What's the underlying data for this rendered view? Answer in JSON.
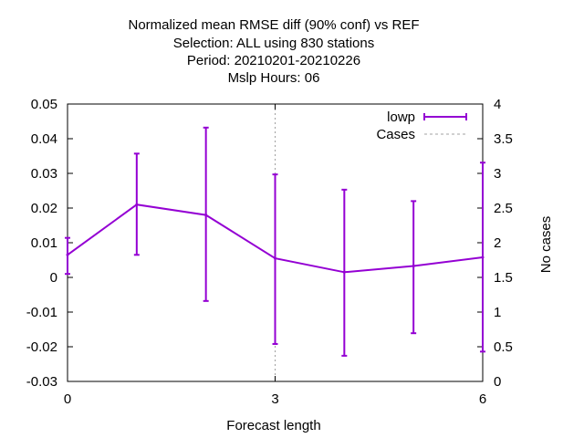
{
  "chart_data": {
    "type": "line",
    "title_lines": [
      "Normalized mean RMSE diff (90% conf) vs REF",
      "Selection: ALL using   830 stations",
      "Period: 20210201-20210226",
      "Mslp   Hours:  06"
    ],
    "xlabel": "Forecast length",
    "ylabel": "",
    "y2label": "No cases",
    "xlim": [
      0,
      6
    ],
    "ylim": [
      -0.03,
      0.05
    ],
    "y2lim": [
      0,
      4
    ],
    "x_ticks": [
      "0",
      "3",
      "6"
    ],
    "x_tick_values": [
      0,
      3,
      6
    ],
    "y_ticks": [
      "-0.03",
      "-0.02",
      "-0.01",
      "0",
      "0.01",
      "0.02",
      "0.03",
      "0.04",
      "0.05"
    ],
    "y_tick_values": [
      -0.03,
      -0.02,
      -0.01,
      0,
      0.01,
      0.02,
      0.03,
      0.04,
      0.05
    ],
    "y2_ticks": [
      "0",
      "0.5",
      "1",
      "1.5",
      "2",
      "2.5",
      "3",
      "3.5",
      "4"
    ],
    "y2_tick_values": [
      0,
      0.5,
      1,
      1.5,
      2,
      2.5,
      3,
      3.5,
      4
    ],
    "grid": "x=3, y=0.05",
    "legend_position": "top-right",
    "series": [
      {
        "name": "lowp",
        "color": "#9400d3",
        "x": [
          0,
          1,
          2,
          3,
          4,
          5,
          6
        ],
        "y": [
          0.0065,
          0.021,
          0.018,
          0.0055,
          0.0015,
          0.0033,
          0.0058
        ],
        "err_low": [
          0.001,
          0.0065,
          -0.0068,
          -0.0192,
          -0.0226,
          -0.0161,
          -0.0214
        ],
        "err_high": [
          0.0114,
          0.0357,
          0.0432,
          0.0297,
          0.0253,
          0.022,
          0.0331
        ]
      },
      {
        "name": "Cases",
        "color": "#a0a0a0",
        "axis": "y2",
        "x": [],
        "y": []
      }
    ]
  }
}
